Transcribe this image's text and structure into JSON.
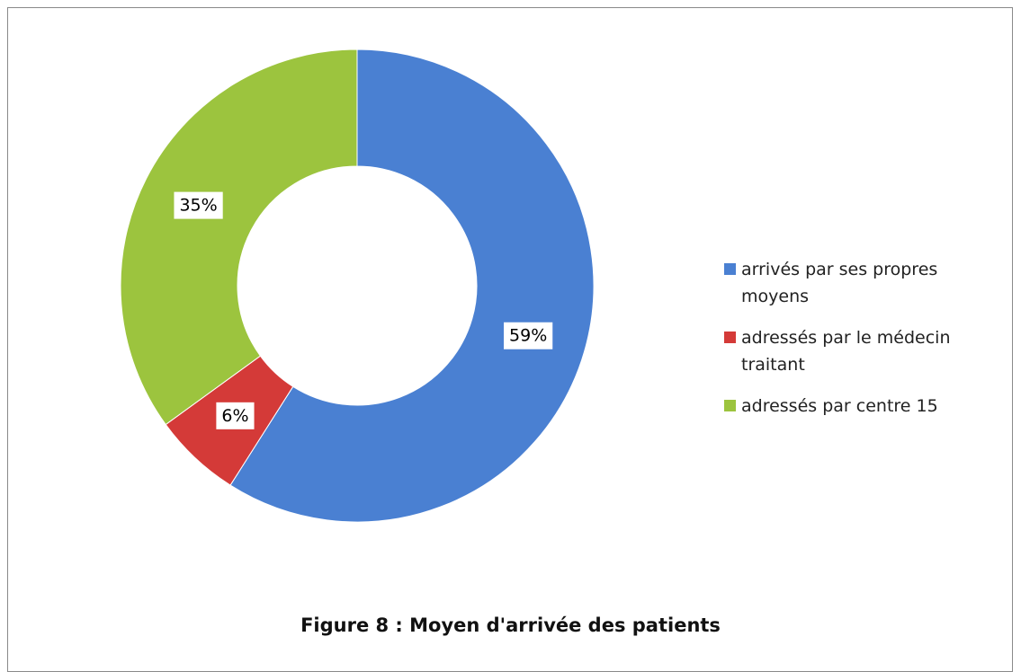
{
  "chart_data": {
    "type": "donut",
    "title": "Figure 8 : Moyen d'arrivée des patients",
    "categories": [
      "arrivés par ses propres moyens",
      "adressés par le médecin traitant",
      "adressés par centre 15"
    ],
    "values": [
      59,
      6,
      35
    ],
    "value_labels": [
      "59%",
      "6%",
      "35%"
    ],
    "colors": [
      "#4a80d2",
      "#d43a38",
      "#9cc43e"
    ],
    "legend": "right"
  }
}
